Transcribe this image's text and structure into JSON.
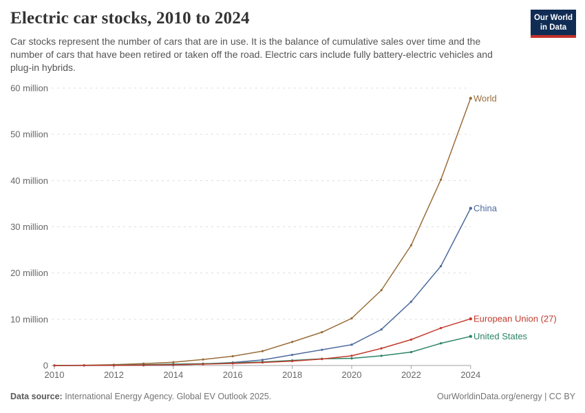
{
  "header": {
    "title": "Electric car stocks, 2010 to 2024",
    "subtitle": "Car stocks represent the number of cars that are in use. It is the balance of cumulative sales over time and the number of cars that have been retired or taken off the road. Electric cars include fully battery-electric vehicles and plug-in hybrids.",
    "logo": {
      "line1": "Our World",
      "line2": "in Data",
      "bg_color": "#102C54",
      "stripe_color": "#C4302B"
    }
  },
  "chart_data": {
    "type": "line",
    "title": "Electric car stocks, 2010 to 2024",
    "xlabel": "",
    "ylabel": "",
    "unit": "million",
    "xlim": [
      2010,
      2024
    ],
    "ylim": [
      0,
      60
    ],
    "grid": "horizontal-dashed",
    "legend_position": "end-of-line-labels",
    "x": [
      2010,
      2011,
      2012,
      2013,
      2014,
      2015,
      2016,
      2017,
      2018,
      2019,
      2020,
      2021,
      2022,
      2023,
      2024
    ],
    "x_ticks": [
      2010,
      2012,
      2014,
      2016,
      2018,
      2020,
      2022,
      2024
    ],
    "y_ticks": [
      {
        "value": 0,
        "label": "0"
      },
      {
        "value": 10,
        "label": "10 million"
      },
      {
        "value": 20,
        "label": "20 million"
      },
      {
        "value": 30,
        "label": "30 million"
      },
      {
        "value": 40,
        "label": "40 million"
      },
      {
        "value": 50,
        "label": "50 million"
      },
      {
        "value": 60,
        "label": "60 million"
      }
    ],
    "series": [
      {
        "name": "World",
        "color": "#996D39",
        "values": [
          0.02,
          0.06,
          0.18,
          0.41,
          0.71,
          1.31,
          2.01,
          3.11,
          5.1,
          7.2,
          10.2,
          16.3,
          26.0,
          40.2,
          57.8
        ]
      },
      {
        "name": "China",
        "color": "#4C6A9C",
        "values": [
          0.0,
          0.01,
          0.02,
          0.04,
          0.1,
          0.31,
          0.66,
          1.21,
          2.3,
          3.4,
          4.5,
          7.8,
          13.8,
          21.5,
          34.0
        ]
      },
      {
        "name": "European Union (27)",
        "color": "#C23A2B",
        "values": [
          0.0,
          0.01,
          0.03,
          0.08,
          0.16,
          0.29,
          0.45,
          0.65,
          0.95,
          1.4,
          2.1,
          3.7,
          5.6,
          8.1,
          10.1
        ]
      },
      {
        "name": "United States",
        "color": "#2C8465",
        "values": [
          0.0,
          0.02,
          0.07,
          0.17,
          0.29,
          0.4,
          0.56,
          0.76,
          1.1,
          1.45,
          1.55,
          2.1,
          2.9,
          4.8,
          6.3
        ]
      }
    ]
  },
  "footer": {
    "datasource_label": "Data source:",
    "datasource_text": " International Energy Agency. Global EV Outlook 2025.",
    "rights": "OurWorldinData.org/energy | CC BY"
  }
}
